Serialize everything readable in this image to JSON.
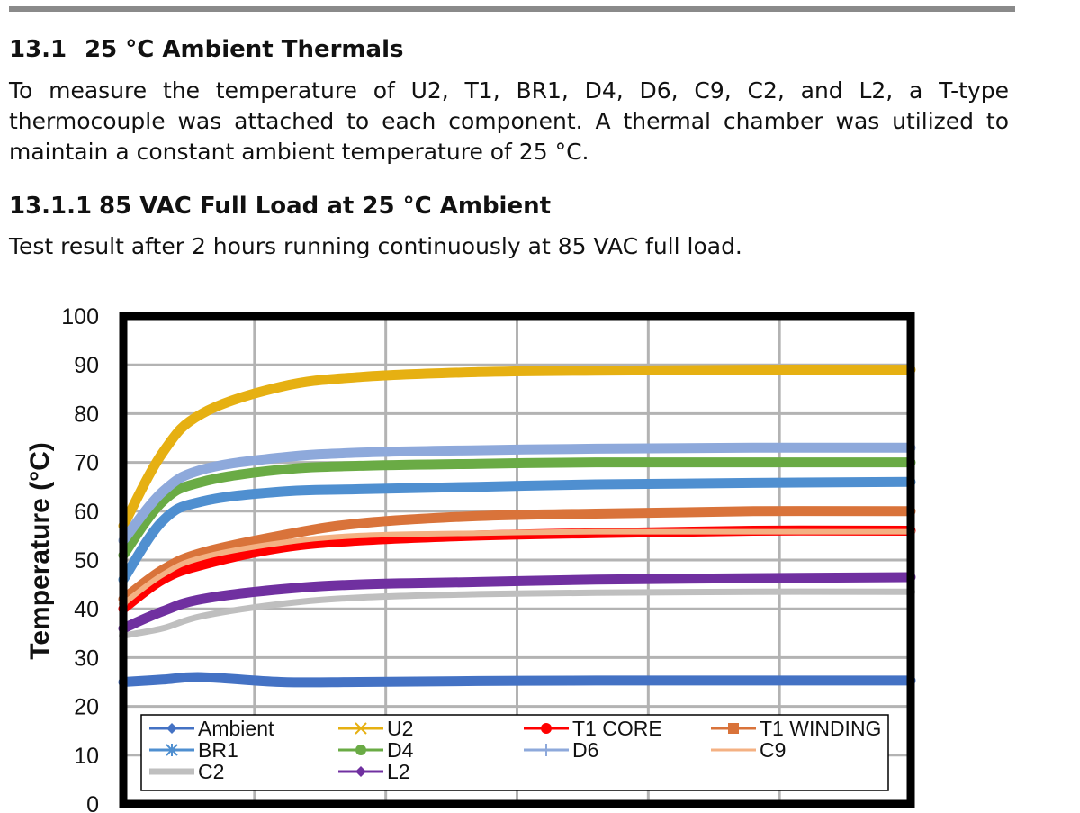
{
  "doc": {
    "section_num": "13.1",
    "section_title": "25 °C Ambient Thermals",
    "paragraph": "To measure the temperature of U2, T1, BR1, D4, D6, C9, C2, and L2, a T-type thermocouple was attached to each component. A thermal chamber was utilized to maintain a constant ambient temperature of 25 °C.",
    "subsection_num": "13.1.1",
    "subsection_title": "85 VAC Full Load at 25 °C Ambient",
    "subsection_text": "Test result after 2 hours running continuously at 85 VAC full load."
  },
  "chart_data": {
    "type": "line",
    "title": "",
    "xlabel": "",
    "ylabel": "Temperature (°C)",
    "ylim": [
      0,
      100
    ],
    "yticks": [
      "0",
      "10",
      "20",
      "30",
      "40",
      "50",
      "60",
      "70",
      "80",
      "90",
      "100"
    ],
    "x_tick_labels_visible": false,
    "grid": true,
    "legend_position": "bottom-inside",
    "x": [
      0,
      0.05,
      0.1,
      0.2,
      0.3,
      0.45,
      0.6,
      0.8,
      1.0
    ],
    "series": [
      {
        "name": "Ambient",
        "color": "#4472c4",
        "marker": "diamond",
        "values": [
          25,
          25.5,
          26,
          25,
          25,
          25.2,
          25.3,
          25.3,
          25.3
        ]
      },
      {
        "name": "U2",
        "color": "#e6b012",
        "marker": "x",
        "values": [
          57,
          72,
          80,
          85.5,
          87.5,
          88.5,
          88.8,
          89,
          89
        ]
      },
      {
        "name": "T1 CORE",
        "color": "#ff0000",
        "marker": "circle",
        "values": [
          40,
          46,
          49,
          52.5,
          54,
          55,
          55.5,
          56,
          56
        ]
      },
      {
        "name": "T1 WINDING",
        "color": "#d9733a",
        "marker": "square",
        "values": [
          42,
          48,
          51.5,
          55,
          57.5,
          59,
          59.5,
          60,
          60
        ]
      },
      {
        "name": "BR1",
        "color": "#4f8fd0",
        "marker": "star",
        "values": [
          46,
          58,
          62,
          64,
          64.5,
          65,
          65.5,
          65.8,
          66
        ]
      },
      {
        "name": "D4",
        "color": "#6aab45",
        "marker": "circle",
        "values": [
          51,
          62,
          66,
          68.5,
          69.3,
          69.7,
          70,
          70,
          70
        ]
      },
      {
        "name": "D6",
        "color": "#8ea9db",
        "marker": "plus",
        "values": [
          54,
          64,
          68.5,
          71,
          72,
          72.5,
          72.8,
          73,
          73
        ]
      },
      {
        "name": "C9",
        "color": "#f4b183",
        "marker": "dash",
        "values": [
          41,
          47,
          50.5,
          53.5,
          55,
          55.5,
          55.8,
          55.8,
          55.8
        ]
      },
      {
        "name": "C2",
        "color": "#bfbfbf",
        "marker": "none",
        "values": [
          34.5,
          36,
          38.5,
          41,
          42.3,
          43,
          43.3,
          43.5,
          43.5
        ]
      },
      {
        "name": "L2",
        "color": "#7030a0",
        "marker": "diamond",
        "values": [
          36,
          39.5,
          42,
          44,
          45,
          45.5,
          46,
          46.3,
          46.5
        ]
      }
    ]
  }
}
